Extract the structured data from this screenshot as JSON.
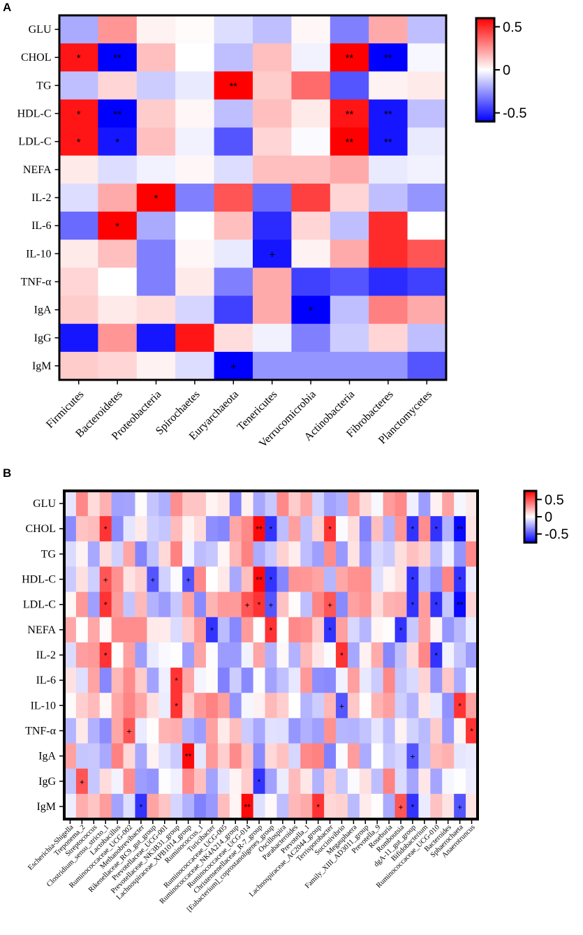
{
  "chart_data": [
    {
      "panel": "A",
      "type": "heatmap",
      "rows": [
        "GLU",
        "CHOL",
        "TG",
        "HDL-C",
        "LDL-C",
        "NEFA",
        "IL-2",
        "IL-6",
        "IL-10",
        "TNF-α",
        "IgA",
        "IgG",
        "IgM"
      ],
      "columns": [
        "Firmicutes",
        "Bacteroidetes",
        "Proteobacteria",
        "Spirochaetes",
        "Euryarchaeota",
        "Tenericutes",
        "Verrucomicrobia",
        "Actinobacteria",
        "Fibrobacteres",
        "Planctomycetes"
      ],
      "values": [
        [
          -0.2,
          0.25,
          0.03,
          0.01,
          -0.08,
          -0.15,
          0.02,
          -0.3,
          0.2,
          -0.15
        ],
        [
          0.55,
          -0.65,
          0.15,
          0.0,
          -0.15,
          0.15,
          -0.03,
          0.6,
          -0.65,
          -0.02
        ],
        [
          -0.15,
          0.1,
          -0.12,
          -0.05,
          0.6,
          0.12,
          0.35,
          -0.4,
          0.03,
          0.05
        ],
        [
          0.55,
          -0.6,
          0.12,
          0.02,
          -0.15,
          0.15,
          0.05,
          0.55,
          -0.55,
          -0.15
        ],
        [
          0.55,
          -0.55,
          0.15,
          -0.03,
          -0.4,
          0.1,
          -0.01,
          0.6,
          -0.55,
          -0.05
        ],
        [
          0.05,
          -0.08,
          -0.03,
          0.02,
          -0.08,
          0.15,
          0.15,
          0.2,
          -0.05,
          -0.03
        ],
        [
          -0.08,
          0.2,
          0.6,
          -0.3,
          0.4,
          -0.35,
          0.45,
          0.1,
          -0.15,
          -0.25
        ],
        [
          -0.35,
          0.65,
          -0.2,
          0.0,
          0.15,
          -0.5,
          0.1,
          -0.15,
          0.5,
          0.0
        ],
        [
          0.05,
          0.15,
          -0.3,
          0.02,
          -0.05,
          -0.55,
          0.03,
          0.2,
          0.5,
          0.4
        ],
        [
          0.1,
          0.0,
          -0.3,
          0.05,
          -0.3,
          0.2,
          -0.45,
          -0.4,
          -0.5,
          -0.45
        ],
        [
          0.12,
          0.05,
          0.08,
          -0.1,
          -0.45,
          0.2,
          -0.65,
          -0.15,
          0.3,
          0.2
        ],
        [
          -0.55,
          0.25,
          -0.55,
          0.55,
          0.08,
          -0.03,
          -0.3,
          -0.12,
          0.1,
          -0.15
        ],
        [
          0.12,
          0.1,
          0.03,
          -0.08,
          -0.6,
          -0.25,
          -0.25,
          -0.25,
          -0.25,
          -0.4
        ]
      ],
      "significance": [
        [
          "",
          "",
          "",
          "",
          "",
          "",
          "",
          "",
          "",
          ""
        ],
        [
          "*",
          "**",
          "",
          "",
          "",
          "",
          "",
          "**",
          "**",
          ""
        ],
        [
          "",
          "",
          "",
          "",
          "**",
          "",
          "",
          "",
          "",
          ""
        ],
        [
          "*",
          "**",
          "",
          "",
          "",
          "",
          "",
          "**",
          "**",
          ""
        ],
        [
          "*",
          "*",
          "",
          "",
          "",
          "",
          "",
          "**",
          "**",
          ""
        ],
        [
          "",
          "",
          "",
          "",
          "",
          "",
          "",
          "",
          "",
          ""
        ],
        [
          "",
          "",
          "*",
          "",
          "",
          "",
          "",
          "",
          "",
          ""
        ],
        [
          "",
          "*",
          "",
          "",
          "",
          "",
          "",
          "",
          "",
          ""
        ],
        [
          "",
          "",
          "",
          "",
          "",
          "+",
          "",
          "",
          "",
          ""
        ],
        [
          "",
          "",
          "",
          "",
          "",
          "",
          "",
          "",
          "",
          ""
        ],
        [
          "",
          "",
          "",
          "",
          "",
          "",
          "*",
          "",
          "",
          ""
        ],
        [
          "",
          "",
          "",
          "",
          "",
          "",
          "",
          "",
          "",
          ""
        ],
        [
          "",
          "",
          "",
          "",
          "+",
          "",
          "",
          "",
          "",
          ""
        ]
      ],
      "colorbar": {
        "min": -0.6,
        "max": 0.6,
        "ticks": [
          "0.5",
          "0",
          "-0.5"
        ],
        "tick_values": [
          0.5,
          0,
          -0.5
        ]
      },
      "colors": {
        "low": "#0000ff",
        "mid": "#ffffff",
        "high": "#ff0000"
      }
    },
    {
      "panel": "B",
      "type": "heatmap",
      "rows": [
        "GLU",
        "CHOL",
        "TG",
        "HDL-C",
        "LDL-C",
        "NEFA",
        "IL-2",
        "IL-6",
        "IL-10",
        "TNF-α",
        "IgA",
        "IgG",
        "IgM"
      ],
      "columns": [
        "Escherichia-Shigella",
        "Treponema_2",
        "Streptococcus",
        "Clostridium_sensu_stricto_1",
        "Lactobacillus",
        "Ruminococcaceae_UCG-002",
        "Methanobrevibacter",
        "Rikenellaceae_RC9_gut_group",
        "Prevotellaceae_UCG-001",
        "Prevotellaceae_NK3B31_group",
        "Lachnospiraceae_XPB1014_group",
        "Ruminococcus_1",
        "Turicibacter",
        "Ruminococcaceae_UCG-005",
        "Ruminococcaceae_NK4A214_group",
        "Ruminococcaceae_UCG-014",
        "Christensenellaceae_R-7_group",
        "[Eubacterium]_coprostanoligenes_group",
        "Oscillospira",
        "Parabacteroides",
        "Prevotella_1",
        "Lachnospiraceae_AC2044_group",
        "Terrisporobacter",
        "Succinivibrio",
        "Megasphaera",
        "Family_XIII_AD3011_group",
        "Prevotella_9",
        "Roseburia",
        "Romboutsia",
        "dgA-11_gut_group",
        "Bifidobacterium",
        "Ruminococcaceae_UCG-010",
        "Bacteroides",
        "Sphaerochaeta",
        "Anaerotruncus"
      ],
      "colorbar": {
        "min": -0.75,
        "max": 0.75,
        "ticks": [
          "0.5",
          "0",
          "-0.5"
        ],
        "tick_values": [
          0.5,
          0,
          -0.5
        ]
      },
      "significance_marks": [
        {
          "row": 1,
          "col": 3,
          "mark": "*"
        },
        {
          "row": 1,
          "col": 16,
          "mark": "**"
        },
        {
          "row": 1,
          "col": 17,
          "mark": "*"
        },
        {
          "row": 1,
          "col": 22,
          "mark": "*"
        },
        {
          "row": 1,
          "col": 29,
          "mark": "*"
        },
        {
          "row": 1,
          "col": 31,
          "mark": "*"
        },
        {
          "row": 1,
          "col": 33,
          "mark": "**"
        },
        {
          "row": 3,
          "col": 3,
          "mark": "+"
        },
        {
          "row": 3,
          "col": 7,
          "mark": "+"
        },
        {
          "row": 3,
          "col": 10,
          "mark": "+"
        },
        {
          "row": 3,
          "col": 16,
          "mark": "**"
        },
        {
          "row": 3,
          "col": 17,
          "mark": "*"
        },
        {
          "row": 3,
          "col": 29,
          "mark": "*"
        },
        {
          "row": 3,
          "col": 33,
          "mark": "*"
        },
        {
          "row": 4,
          "col": 3,
          "mark": "*"
        },
        {
          "row": 4,
          "col": 15,
          "mark": "+"
        },
        {
          "row": 4,
          "col": 16,
          "mark": "*"
        },
        {
          "row": 4,
          "col": 17,
          "mark": "+"
        },
        {
          "row": 4,
          "col": 22,
          "mark": "+"
        },
        {
          "row": 4,
          "col": 29,
          "mark": "*"
        },
        {
          "row": 4,
          "col": 31,
          "mark": "*"
        },
        {
          "row": 4,
          "col": 33,
          "mark": "**"
        },
        {
          "row": 5,
          "col": 12,
          "mark": "*"
        },
        {
          "row": 5,
          "col": 17,
          "mark": "*"
        },
        {
          "row": 5,
          "col": 22,
          "mark": "*"
        },
        {
          "row": 5,
          "col": 28,
          "mark": "*"
        },
        {
          "row": 6,
          "col": 3,
          "mark": "*"
        },
        {
          "row": 6,
          "col": 23,
          "mark": "*"
        },
        {
          "row": 6,
          "col": 31,
          "mark": "*"
        },
        {
          "row": 7,
          "col": 9,
          "mark": "*"
        },
        {
          "row": 8,
          "col": 9,
          "mark": "*"
        },
        {
          "row": 8,
          "col": 23,
          "mark": "+"
        },
        {
          "row": 8,
          "col": 33,
          "mark": "*"
        },
        {
          "row": 9,
          "col": 5,
          "mark": "+"
        },
        {
          "row": 9,
          "col": 34,
          "mark": "*"
        },
        {
          "row": 10,
          "col": 10,
          "mark": "**"
        },
        {
          "row": 10,
          "col": 29,
          "mark": "+"
        },
        {
          "row": 11,
          "col": 1,
          "mark": "+"
        },
        {
          "row": 11,
          "col": 16,
          "mark": "*"
        },
        {
          "row": 12,
          "col": 6,
          "mark": "*"
        },
        {
          "row": 12,
          "col": 15,
          "mark": "**"
        },
        {
          "row": 12,
          "col": 21,
          "mark": "*"
        },
        {
          "row": 12,
          "col": 28,
          "mark": "+"
        },
        {
          "row": 12,
          "col": 29,
          "mark": "*"
        },
        {
          "row": 12,
          "col": 33,
          "mark": "+"
        }
      ],
      "colors": {
        "low": "#0000ff",
        "mid": "#ffffff",
        "high": "#ff0000"
      }
    }
  ],
  "panel_labels": {
    "a": "A",
    "b": "B"
  }
}
